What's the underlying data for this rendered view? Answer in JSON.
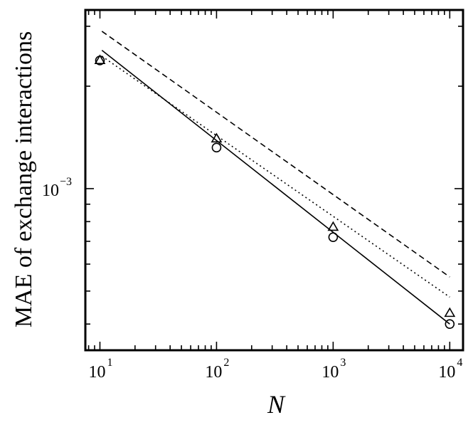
{
  "chart_data": {
    "type": "scatter",
    "xlabel": "N",
    "ylabel": "MAE of exchange interactions",
    "x_scale": "log",
    "y_scale": "log",
    "xlim": [
      7.5,
      13000
    ],
    "ylim": [
      0.000335,
      0.00335
    ],
    "grid": false,
    "legend": "none",
    "x_ticks": [
      {
        "base": "10",
        "exp": "1",
        "value": 10
      },
      {
        "base": "10",
        "exp": "2",
        "value": 100
      },
      {
        "base": "10",
        "exp": "3",
        "value": 1000
      },
      {
        "base": "10",
        "exp": "4",
        "value": 10000
      }
    ],
    "y_ticks": [
      {
        "base": "10",
        "exp": "−3",
        "value": 0.001
      }
    ],
    "series": [
      {
        "marker": "circle",
        "line": "solid",
        "x": [
          10,
          100,
          1000,
          10000
        ],
        "y": [
          0.00238,
          0.00132,
          0.00072,
          0.0004
        ],
        "fit": {
          "x": [
            10.4,
            10000
          ],
          "y": [
            0.00255,
            0.0004
          ]
        }
      },
      {
        "marker": "triangle",
        "line": "dotted",
        "x": [
          10,
          100,
          1000,
          10000
        ],
        "y": [
          0.00238,
          0.0014,
          0.00077,
          0.00043
        ],
        "fit": {
          "x": [
            10.4,
            10000
          ],
          "y": [
            0.00245,
            0.00048
          ]
        }
      },
      {
        "line": "dashed",
        "fit": {
          "x": [
            10.4,
            10000
          ],
          "y": [
            0.0029,
            0.00055
          ]
        }
      }
    ]
  }
}
